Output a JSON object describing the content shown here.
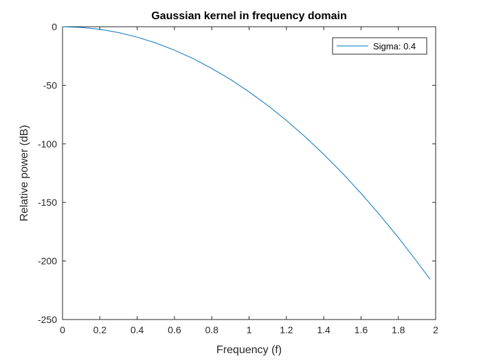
{
  "chart_data": {
    "type": "line",
    "title": "Gaussian kernel in frequency domain",
    "xlabel": "Frequency (f)",
    "ylabel": "Relative power (dB)",
    "xlim": [
      0,
      2
    ],
    "ylim": [
      -250,
      0
    ],
    "xticks": [
      "0",
      "0.2",
      "0.4",
      "0.6",
      "0.8",
      "1",
      "1.2",
      "1.4",
      "1.6",
      "1.8",
      "2"
    ],
    "yticks": [
      "0",
      "-50",
      "-100",
      "-150",
      "-200",
      "-250"
    ],
    "grid": false,
    "legend_position": "top-right",
    "series": [
      {
        "name": "Sigma: 0.4",
        "color": "#0072BD",
        "x": [
          0,
          0.1,
          0.2,
          0.3,
          0.4,
          0.5,
          0.6,
          0.7,
          0.8,
          0.9,
          1.0,
          1.1,
          1.2,
          1.3,
          1.4,
          1.5,
          1.6,
          1.7,
          1.8,
          1.9,
          1.97
        ],
        "y": [
          0,
          -0.6,
          -2.2,
          -5.0,
          -8.9,
          -13.9,
          -20.0,
          -27.2,
          -35.6,
          -45.0,
          -55.6,
          -67.2,
          -80.0,
          -93.9,
          -108.9,
          -125.0,
          -142.2,
          -160.6,
          -180.0,
          -200.6,
          -215.6
        ]
      }
    ]
  }
}
